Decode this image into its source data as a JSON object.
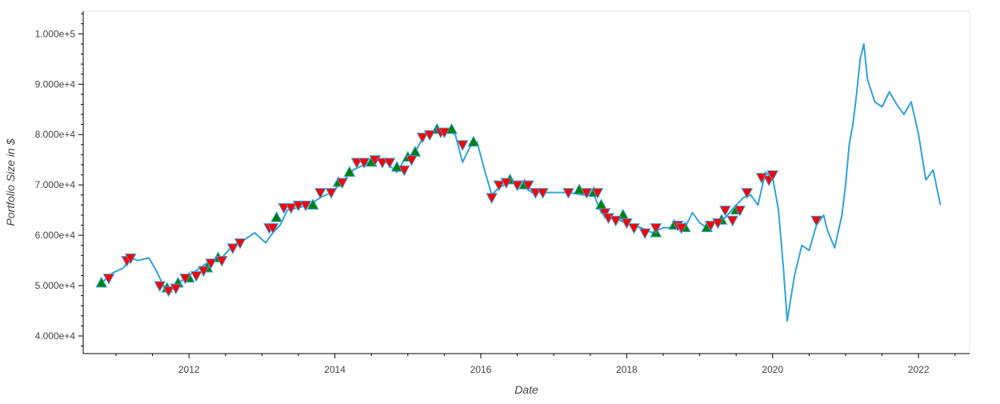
{
  "colors": {
    "line": "#30a2da",
    "buy_fill": "#008000",
    "sell_fill": "#ff0000",
    "marker_stroke": "#30a2da",
    "axis": "#000000",
    "frame": "#e5e5e5",
    "text": "#444444"
  },
  "chart_data": {
    "type": "line",
    "title": "",
    "xlabel": "Date",
    "ylabel": "Portfolio Size in $",
    "xlim": [
      2010.55,
      2022.7
    ],
    "ylim": [
      36500,
      104500
    ],
    "grid": false,
    "x_ticks": [
      {
        "value": 2012,
        "label": "2012"
      },
      {
        "value": 2014,
        "label": "2014"
      },
      {
        "value": 2016,
        "label": "2016"
      },
      {
        "value": 2018,
        "label": "2018"
      },
      {
        "value": 2020,
        "label": "2020"
      },
      {
        "value": 2022,
        "label": "2022"
      }
    ],
    "y_ticks": [
      {
        "value": 40000,
        "label": "4.000e+4"
      },
      {
        "value": 50000,
        "label": "5.000e+4"
      },
      {
        "value": 60000,
        "label": "6.000e+4"
      },
      {
        "value": 70000,
        "label": "7.000e+4"
      },
      {
        "value": 80000,
        "label": "8.000e+4"
      },
      {
        "value": 90000,
        "label": "9.000e+4"
      },
      {
        "value": 100000,
        "label": "1.000e+5"
      }
    ],
    "series": [
      {
        "x": [
          2010.8,
          2010.95,
          2011.1,
          2011.2,
          2011.3,
          2011.45,
          2011.55,
          2011.65,
          2011.75,
          2011.85,
          2011.95,
          2012.1,
          2012.25,
          2012.45,
          2012.6,
          2012.75,
          2012.9,
          2013.05,
          2013.15,
          2013.25,
          2013.35,
          2013.5,
          2013.65,
          2013.8,
          2013.95,
          2014.1,
          2014.25,
          2014.4,
          2014.55,
          2014.7,
          2014.85,
          2014.95,
          2015.1,
          2015.25,
          2015.4,
          2015.55,
          2015.65,
          2015.75,
          2015.85,
          2015.95,
          2016.05,
          2016.15,
          2016.25,
          2016.4,
          2016.55,
          2016.7,
          2016.85,
          2017.0,
          2017.2,
          2017.4,
          2017.55,
          2017.65,
          2017.75,
          2017.9,
          2018.05,
          2018.2,
          2018.35,
          2018.5,
          2018.65,
          2018.8,
          2018.9,
          2019.0,
          2019.1,
          2019.2,
          2019.35,
          2019.5,
          2019.6,
          2019.7,
          2019.8,
          2019.9,
          2020.0,
          2020.08,
          2020.15,
          2020.2,
          2020.3,
          2020.4,
          2020.5,
          2020.6,
          2020.7,
          2020.75,
          2020.85,
          2020.95,
          2021.0,
          2021.05,
          2021.1,
          2021.15,
          2021.2,
          2021.25,
          2021.3,
          2021.4,
          2021.5,
          2021.6,
          2021.7,
          2021.8,
          2021.9,
          2022.0,
          2022.1,
          2022.2,
          2022.3
        ],
        "y": [
          50500,
          52500,
          53500,
          55500,
          55000,
          55500,
          53000,
          50000,
          49500,
          50500,
          51500,
          53000,
          54500,
          55500,
          58000,
          59000,
          60500,
          58500,
          60500,
          62000,
          65000,
          65500,
          66000,
          67500,
          68500,
          70500,
          73000,
          74000,
          75000,
          74500,
          72500,
          75000,
          76500,
          80500,
          80500,
          81000,
          80000,
          74500,
          77500,
          78500,
          73000,
          68000,
          69500,
          70500,
          70000,
          68500,
          68500,
          68500,
          68500,
          68000,
          68000,
          64500,
          63500,
          63000,
          62000,
          61500,
          60500,
          61500,
          61500,
          61500,
          64500,
          62500,
          61500,
          63000,
          63500,
          66000,
          67500,
          68000,
          66000,
          72500,
          71500,
          65000,
          53000,
          43000,
          52000,
          58000,
          57000,
          62000,
          64000,
          61000,
          57500,
          64000,
          70000,
          78000,
          82000,
          88000,
          95000,
          98000,
          91000,
          86500,
          85500,
          88500,
          86000,
          84000,
          86500,
          80000,
          71000,
          73000,
          66000
        ]
      }
    ],
    "buy_signals": {
      "x": [
        2010.8,
        2011.7,
        2011.85,
        2012.0,
        2012.25,
        2012.4,
        2013.2,
        2013.7,
        2014.05,
        2014.2,
        2014.5,
        2014.85,
        2015.0,
        2015.1,
        2015.4,
        2015.6,
        2015.9,
        2016.4,
        2016.6,
        2017.35,
        2017.55,
        2017.65,
        2017.95,
        2018.4,
        2018.65,
        2018.8,
        2019.1,
        2019.3,
        2019.5
      ],
      "y": [
        50500,
        49500,
        50500,
        51500,
        53500,
        55500,
        63500,
        66000,
        70500,
        72500,
        74500,
        73500,
        75500,
        76500,
        81000,
        81000,
        78500,
        71000,
        70000,
        69000,
        68500,
        66000,
        64000,
        60500,
        62000,
        61500,
        61500,
        63000,
        65000
      ]
    },
    "sell_signals": {
      "x": [
        2010.9,
        2011.15,
        2011.2,
        2011.6,
        2011.72,
        2011.82,
        2011.95,
        2012.1,
        2012.2,
        2012.3,
        2012.45,
        2012.6,
        2012.7,
        2013.1,
        2013.15,
        2013.3,
        2013.4,
        2013.5,
        2013.6,
        2013.8,
        2013.95,
        2014.1,
        2014.3,
        2014.4,
        2014.55,
        2014.65,
        2014.75,
        2014.95,
        2015.05,
        2015.2,
        2015.3,
        2015.45,
        2015.5,
        2015.75,
        2016.15,
        2016.25,
        2016.35,
        2016.5,
        2016.65,
        2016.75,
        2016.85,
        2017.2,
        2017.45,
        2017.6,
        2017.7,
        2017.75,
        2017.85,
        2018.0,
        2018.1,
        2018.25,
        2018.4,
        2018.7,
        2018.75,
        2019.15,
        2019.25,
        2019.35,
        2019.45,
        2019.55,
        2019.65,
        2019.85,
        2019.95,
        2020.0,
        2020.6
      ],
      "y": [
        51500,
        55000,
        55500,
        50000,
        49000,
        49500,
        51500,
        52000,
        53000,
        54500,
        55000,
        57500,
        58500,
        61500,
        61500,
        65500,
        65500,
        66000,
        66000,
        68500,
        68500,
        70500,
        74500,
        74500,
        75000,
        74500,
        74500,
        73000,
        75000,
        79500,
        80000,
        80500,
        80500,
        78000,
        67500,
        70000,
        70500,
        70000,
        70000,
        68500,
        68500,
        68500,
        68500,
        68500,
        64500,
        63500,
        63000,
        62500,
        61500,
        60500,
        61500,
        62000,
        61500,
        62000,
        62500,
        65000,
        63000,
        65000,
        68500,
        71500,
        71000,
        72000,
        63000
      ]
    }
  }
}
